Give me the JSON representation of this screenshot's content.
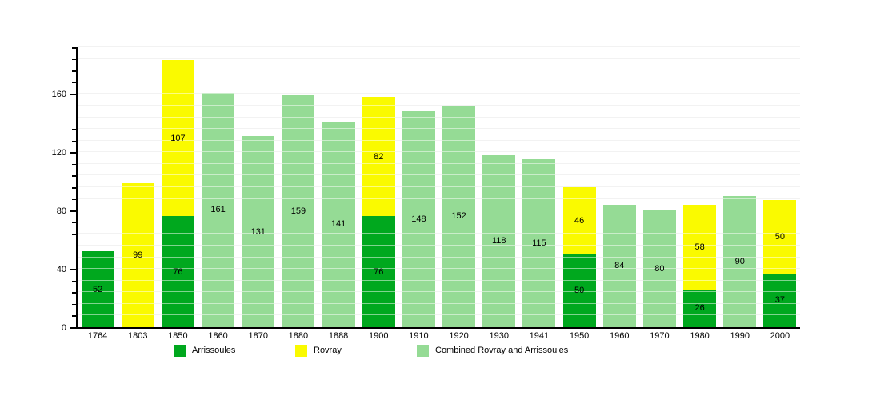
{
  "chart_data": {
    "type": "bar",
    "stacked": true,
    "title": "",
    "xlabel": "",
    "ylabel": "",
    "categories": [
      "1764",
      "1803",
      "1850",
      "1860",
      "1870",
      "1880",
      "1888",
      "1900",
      "1910",
      "1920",
      "1930",
      "1941",
      "1950",
      "1960",
      "1970",
      "1980",
      "1990",
      "2000"
    ],
    "series": [
      {
        "name": "Arrissoules",
        "key": "arrissoules",
        "color": "#00A81E",
        "values": [
          52,
          null,
          76,
          null,
          null,
          null,
          null,
          76,
          null,
          null,
          null,
          null,
          50,
          null,
          null,
          26,
          null,
          37
        ]
      },
      {
        "name": "Rovray",
        "key": "rovray",
        "color": "#FAFA00",
        "values": [
          null,
          99,
          107,
          null,
          null,
          null,
          null,
          82,
          null,
          null,
          null,
          null,
          46,
          null,
          null,
          58,
          null,
          50
        ]
      },
      {
        "name": "Combined Rovray and Arrissoules",
        "key": "combined",
        "color": "#95DB95",
        "values": [
          null,
          null,
          null,
          161,
          131,
          159,
          141,
          null,
          148,
          152,
          118,
          115,
          null,
          84,
          80,
          null,
          90,
          null
        ]
      }
    ],
    "ylim": [
      0,
      192
    ],
    "ytick_major_labels": [
      "0",
      "40",
      "80",
      "120",
      "160"
    ],
    "ytick_major_values": [
      0,
      40,
      80,
      120,
      160
    ],
    "ytick_minor_step": 8,
    "grid": true,
    "grid_color": "#e4e4e4",
    "axis_color": "#000000",
    "legend_position": "bottom"
  },
  "legend": {
    "items": [
      {
        "label": "Arrissoules",
        "color": "#00A81E"
      },
      {
        "label": "Rovray",
        "color": "#FAFA00"
      },
      {
        "label": "Combined Rovray and Arrissoules",
        "color": "#95DB95"
      }
    ]
  }
}
